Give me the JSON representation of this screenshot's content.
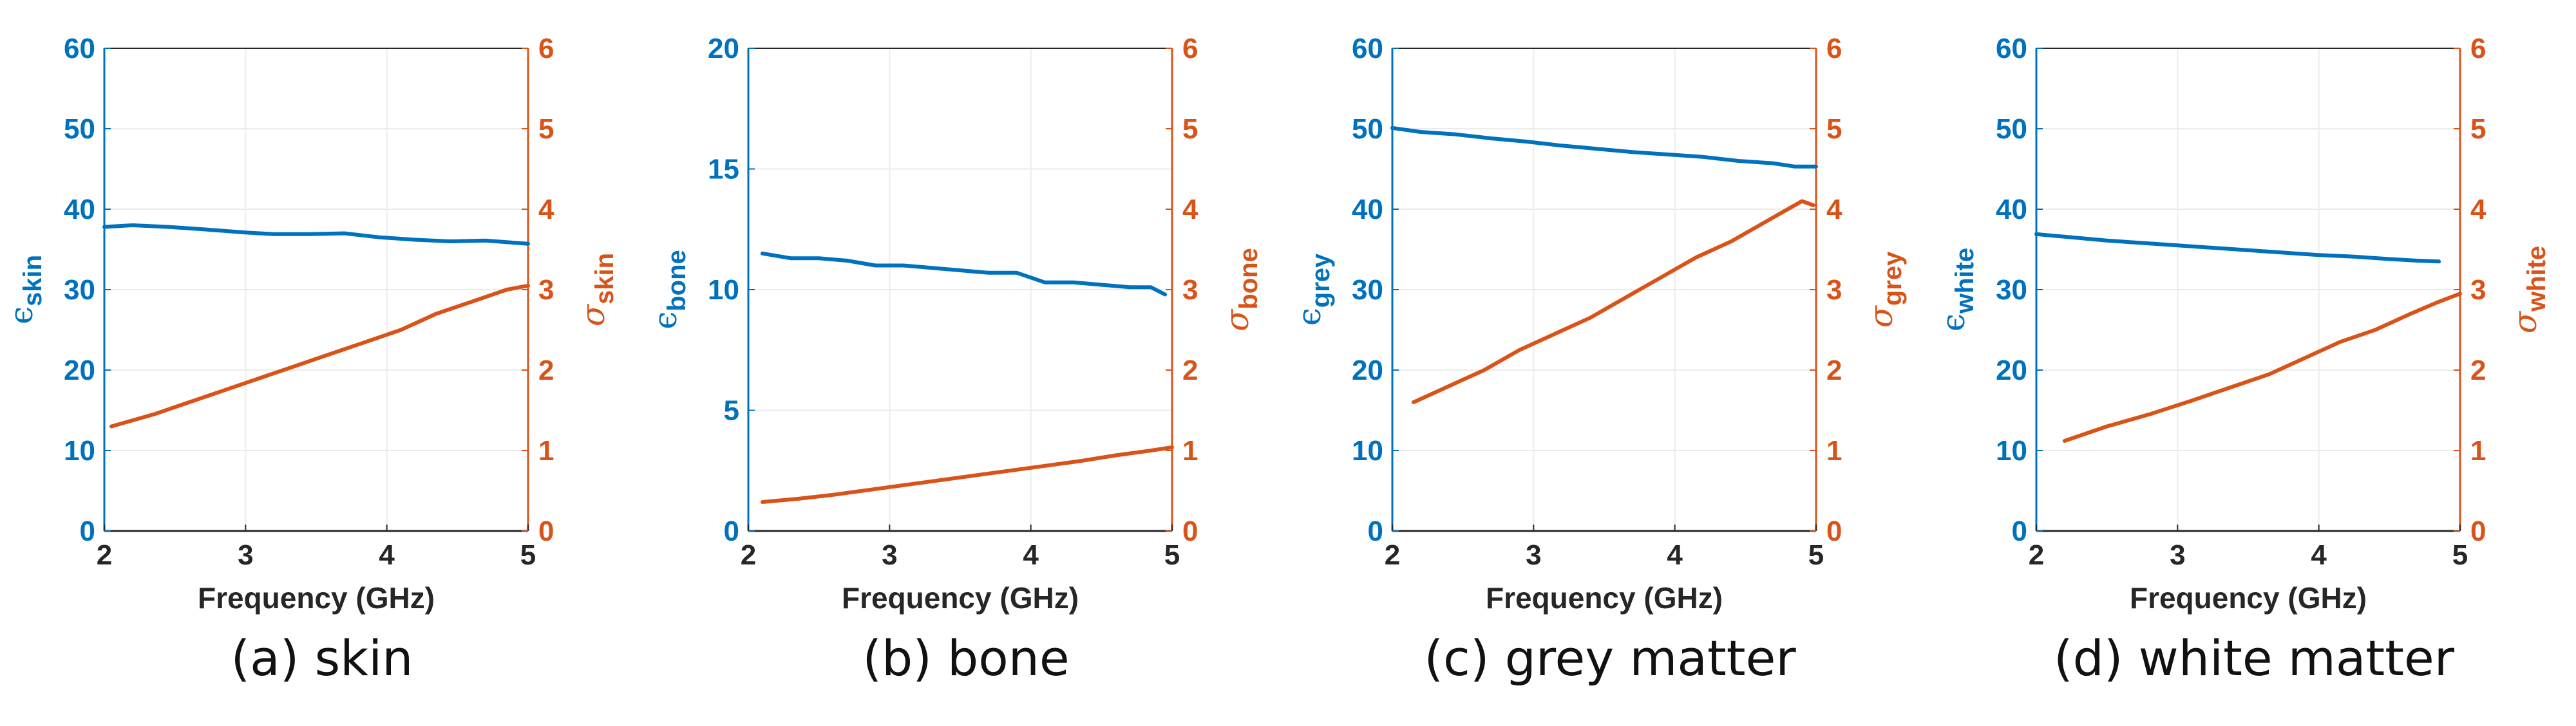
{
  "colors": {
    "eps": "#0072BD",
    "sigma": "#D95319",
    "axis": "#262626",
    "grid": "#ebebeb"
  },
  "chart_data": [
    {
      "type": "line",
      "caption": "(a) skin",
      "xlabel": "Frequency (GHz)",
      "xlim": [
        2,
        5
      ],
      "xticks": [
        "2",
        "3",
        "4",
        "5"
      ],
      "left_axis": {
        "symbol": "ϵ",
        "subscript": "skin",
        "ylim": [
          0,
          60
        ],
        "ticks": [
          "0",
          "10",
          "20",
          "30",
          "40",
          "50",
          "60"
        ]
      },
      "right_axis": {
        "symbol": "σ",
        "subscript": "skin",
        "ylim": [
          0,
          6
        ],
        "ticks": [
          "0",
          "1",
          "2",
          "3",
          "4",
          "5",
          "6"
        ]
      },
      "series": [
        {
          "name": "ϵ skin",
          "axis": "left",
          "x": [
            2.0,
            2.2,
            2.45,
            2.7,
            3.0,
            3.2,
            3.45,
            3.7,
            3.95,
            4.2,
            4.45,
            4.7,
            5.0
          ],
          "y": [
            37.8,
            38.0,
            37.8,
            37.5,
            37.1,
            36.9,
            36.9,
            37.0,
            36.5,
            36.2,
            36.0,
            36.1,
            35.7
          ]
        },
        {
          "name": "σ skin",
          "axis": "right",
          "x": [
            2.05,
            2.35,
            2.6,
            2.85,
            3.1,
            3.35,
            3.6,
            3.85,
            4.1,
            4.35,
            4.6,
            4.85,
            5.0
          ],
          "y": [
            1.3,
            1.45,
            1.6,
            1.75,
            1.9,
            2.05,
            2.2,
            2.35,
            2.5,
            2.7,
            2.85,
            3.0,
            3.05
          ]
        }
      ]
    },
    {
      "type": "line",
      "caption": "(b) bone",
      "xlabel": "Frequency (GHz)",
      "xlim": [
        2,
        5
      ],
      "xticks": [
        "2",
        "3",
        "4",
        "5"
      ],
      "left_axis": {
        "symbol": "ϵ",
        "subscript": "bone",
        "ylim": [
          0,
          20
        ],
        "ticks": [
          "0",
          "5",
          "10",
          "15",
          "20"
        ]
      },
      "right_axis": {
        "symbol": "σ",
        "subscript": "bone",
        "ylim": [
          0,
          6
        ],
        "ticks": [
          "0",
          "1",
          "2",
          "3",
          "4",
          "5",
          "6"
        ]
      },
      "series": [
        {
          "name": "ϵ bone",
          "axis": "left",
          "x": [
            2.1,
            2.3,
            2.5,
            2.7,
            2.9,
            3.1,
            3.3,
            3.5,
            3.7,
            3.9,
            4.1,
            4.3,
            4.5,
            4.7,
            4.85,
            4.95
          ],
          "y": [
            11.5,
            11.3,
            11.3,
            11.2,
            11.0,
            11.0,
            10.9,
            10.8,
            10.7,
            10.7,
            10.3,
            10.3,
            10.2,
            10.1,
            10.1,
            9.8
          ]
        },
        {
          "name": "σ bone",
          "axis": "right",
          "x": [
            2.1,
            2.35,
            2.6,
            2.85,
            3.1,
            3.35,
            3.6,
            3.85,
            4.1,
            4.35,
            4.6,
            4.85,
            5.0
          ],
          "y": [
            0.36,
            0.4,
            0.45,
            0.51,
            0.57,
            0.63,
            0.69,
            0.75,
            0.81,
            0.87,
            0.94,
            1.0,
            1.04
          ]
        }
      ]
    },
    {
      "type": "line",
      "caption": "(c) grey matter",
      "xlabel": "Frequency (GHz)",
      "xlim": [
        2,
        5
      ],
      "xticks": [
        "2",
        "3",
        "4",
        "5"
      ],
      "left_axis": {
        "symbol": "ϵ",
        "subscript": "grey",
        "ylim": [
          0,
          60
        ],
        "ticks": [
          "0",
          "10",
          "20",
          "30",
          "40",
          "50",
          "60"
        ]
      },
      "right_axis": {
        "symbol": "σ",
        "subscript": "grey",
        "ylim": [
          0,
          6
        ],
        "ticks": [
          "0",
          "1",
          "2",
          "3",
          "4",
          "5",
          "6"
        ]
      },
      "series": [
        {
          "name": "ϵ grey",
          "axis": "left",
          "x": [
            2.0,
            2.2,
            2.45,
            2.7,
            2.95,
            3.2,
            3.45,
            3.7,
            3.95,
            4.2,
            4.45,
            4.7,
            4.85,
            5.0
          ],
          "y": [
            50.1,
            49.6,
            49.3,
            48.8,
            48.4,
            47.9,
            47.5,
            47.1,
            46.8,
            46.5,
            46.0,
            45.7,
            45.3,
            45.3
          ]
        },
        {
          "name": "σ grey",
          "axis": "right",
          "x": [
            2.15,
            2.4,
            2.65,
            2.9,
            3.15,
            3.4,
            3.65,
            3.9,
            4.15,
            4.4,
            4.65,
            4.9,
            4.98
          ],
          "y": [
            1.6,
            1.8,
            2.0,
            2.25,
            2.45,
            2.65,
            2.9,
            3.15,
            3.4,
            3.6,
            3.85,
            4.1,
            4.05
          ]
        }
      ]
    },
    {
      "type": "line",
      "caption": "(d) white matter",
      "xlabel": "Frequency (GHz)",
      "xlim": [
        2,
        5
      ],
      "xticks": [
        "2",
        "3",
        "4",
        "5"
      ],
      "left_axis": {
        "symbol": "ϵ",
        "subscript": "white",
        "ylim": [
          0,
          60
        ],
        "ticks": [
          "0",
          "10",
          "20",
          "30",
          "40",
          "50",
          "60"
        ]
      },
      "right_axis": {
        "symbol": "σ",
        "subscript": "white",
        "ylim": [
          0,
          6
        ],
        "ticks": [
          "0",
          "1",
          "2",
          "3",
          "4",
          "5",
          "6"
        ]
      },
      "series": [
        {
          "name": "ϵ white",
          "axis": "left",
          "x": [
            2.0,
            2.25,
            2.5,
            2.75,
            3.0,
            3.25,
            3.5,
            3.75,
            4.0,
            4.25,
            4.5,
            4.7,
            4.85
          ],
          "y": [
            36.9,
            36.5,
            36.1,
            35.8,
            35.5,
            35.2,
            34.9,
            34.6,
            34.3,
            34.1,
            33.8,
            33.6,
            33.5
          ]
        },
        {
          "name": "σ white",
          "axis": "right",
          "x": [
            2.2,
            2.5,
            2.8,
            3.1,
            3.4,
            3.65,
            3.9,
            4.15,
            4.4,
            4.65,
            4.85,
            5.0
          ],
          "y": [
            1.12,
            1.3,
            1.45,
            1.62,
            1.8,
            1.95,
            2.15,
            2.35,
            2.5,
            2.7,
            2.85,
            2.95
          ]
        }
      ]
    }
  ]
}
